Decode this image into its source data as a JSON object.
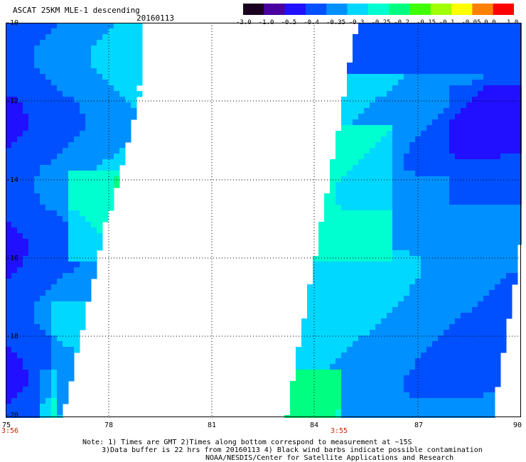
{
  "header": {
    "title": "ASCAT 25KM MLE-1 descending",
    "date": "20160113"
  },
  "colorbar": {
    "labels": [
      "-3.0",
      "-1.0",
      "-0.5",
      "-0.4",
      "-0.35",
      "-0.3",
      "-0.25",
      "-0.2",
      "-0.15",
      "-0.1",
      "-0.05",
      "0.0",
      "1.0"
    ],
    "colors": [
      "#1a0020",
      "#4a00a0",
      "#2010ff",
      "#0050ff",
      "#0090ff",
      "#00d8ff",
      "#00ffd0",
      "#00ff80",
      "#40ff00",
      "#a0ff00",
      "#ffff00",
      "#ff8000",
      "#ff0000"
    ]
  },
  "map": {
    "lon_min": 75,
    "lon_max": 90,
    "lat_min": -20,
    "lat_max": -10,
    "x_ticks": [
      "75",
      "78",
      "81",
      "84",
      "87",
      "90"
    ],
    "y_ticks": [
      "-10",
      "-12",
      "-14",
      "-16",
      "-18",
      "-20"
    ],
    "pass_times": [
      {
        "label": "3:56",
        "lon": 75
      },
      {
        "label": "3:55",
        "lon": 84.6
      }
    ]
  },
  "notes": [
    "Note: 1) Times are GMT 2)Times along bottom correspond to measurement at ~15S",
    "3)Data buffer is 22 hrs from 20160113 4) Black wind barbs indicate possible contamination",
    "NOAA/NESDIS/Center for Satellite Applications and Research"
  ]
}
